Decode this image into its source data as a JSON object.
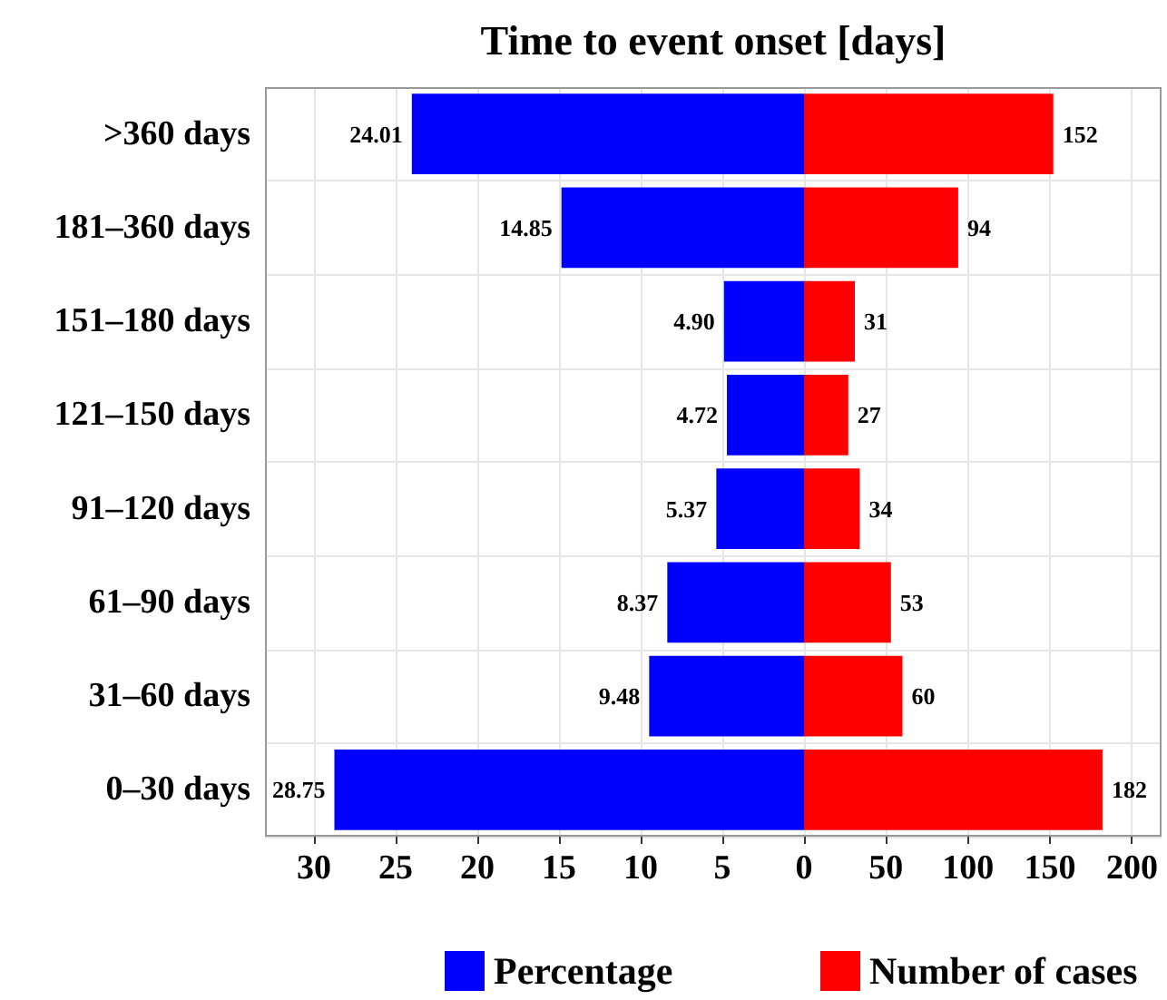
{
  "chart_data": [
    {
      "type": "bar",
      "title": "Time to event onset [days]",
      "orientation": "horizontal",
      "categories": [
        ">360 days",
        "181–360 days",
        "151–180 days",
        "121–150 days",
        "91–120 days",
        "61–90 days",
        "31–60 days",
        "0–30 days"
      ],
      "series": [
        {
          "name": "Percentage",
          "color": "#0000ff",
          "values": [
            24.01,
            14.85,
            4.9,
            4.72,
            5.37,
            8.37,
            9.48,
            28.75
          ],
          "value_labels": [
            "24.01",
            "14.85",
            "4.90",
            "4.72",
            "5.37",
            "8.37",
            "9.48",
            "28.75"
          ]
        }
      ],
      "xlim": [
        33,
        0
      ],
      "xticks": [
        30,
        25,
        20,
        15,
        10,
        5,
        0
      ],
      "grid": true,
      "legend": "bottom"
    },
    {
      "type": "bar",
      "orientation": "horizontal",
      "categories": [
        null,
        null,
        null,
        null,
        null,
        null,
        null,
        null
      ],
      "series": [
        {
          "name": "Number of cases",
          "color": "#ff0000",
          "values": [
            152,
            94,
            31,
            27,
            34,
            53,
            60,
            182
          ]
        }
      ],
      "data_labels": true,
      "xlim": [
        0,
        218
      ],
      "xticks": [
        {
          "value": 0,
          "label": null
        },
        50,
        100,
        150,
        200
      ],
      "grid": true,
      "legend": "bottom",
      "tick_labels": "x"
    }
  ]
}
